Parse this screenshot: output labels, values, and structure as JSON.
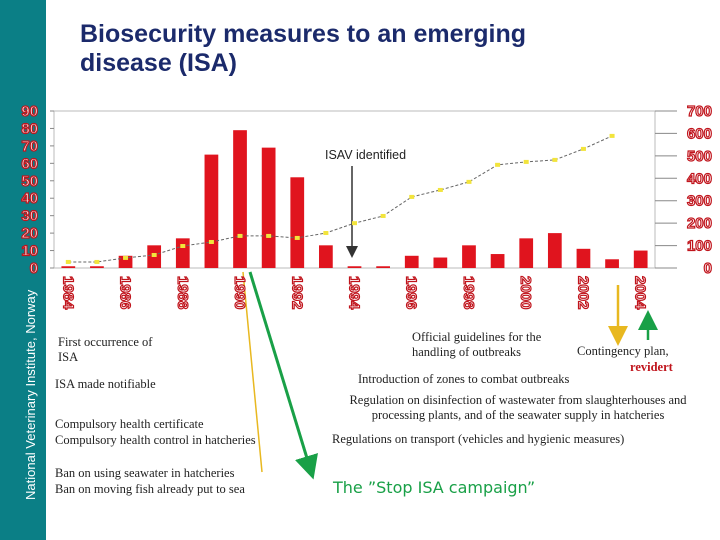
{
  "chart_data": {
    "type": "bar",
    "title": "Biosecurity measures to an emerging disease (ISA)",
    "side_label": "National Veterinary Institute, Norway",
    "categories": [
      "1984",
      null,
      "1986",
      null,
      "1988",
      null,
      "1990",
      null,
      "1992",
      null,
      "1994",
      null,
      "1996",
      null,
      "1998",
      null,
      "2000",
      null,
      "2002",
      null,
      "2004"
    ],
    "series": [
      {
        "type": "bar",
        "color": "#e0141e",
        "axis": "y",
        "values": [
          1,
          1,
          7,
          13,
          17,
          65,
          79,
          69,
          52,
          13,
          1,
          1,
          7,
          6,
          13,
          8,
          17,
          20,
          11,
          5,
          10
        ]
      },
      {
        "type": "line",
        "color": "#f2e43c",
        "axis": "y2",
        "values": [
          27,
          27,
          45,
          58,
          98,
          116,
          143,
          143,
          134,
          156,
          200,
          232,
          317,
          348,
          384,
          460,
          473,
          482,
          531,
          589,
          null
        ]
      }
    ],
    "ylim": [
      0,
      90
    ],
    "yticks": [
      0,
      10,
      20,
      30,
      40,
      50,
      60,
      70,
      80,
      90
    ],
    "y2lim": [
      0,
      700
    ],
    "y2ticks": [
      0,
      100,
      200,
      300,
      400,
      500,
      600,
      700
    ],
    "grid": false,
    "annotations": [
      "ISAV identified",
      "First occurrence of ISA",
      "ISA made notifiable",
      "Compulsory health certificate",
      "Compulsory health control in hatcheries",
      "Ban on using seawater in hatcheries",
      "Ban on moving fish already put to sea",
      "Official guidelines for the handling of outbreaks",
      "Contingency plan,",
      "revidert",
      "Introduction of zones to combat outbreaks",
      "Regulation on disinfection of wastewater from slaughterhouses and processing plants, and of the seawater supply in hatcheries",
      "Regulations on transport  (vehicles and hygienic measures)",
      "The ”Stop ISA campaign”"
    ]
  }
}
